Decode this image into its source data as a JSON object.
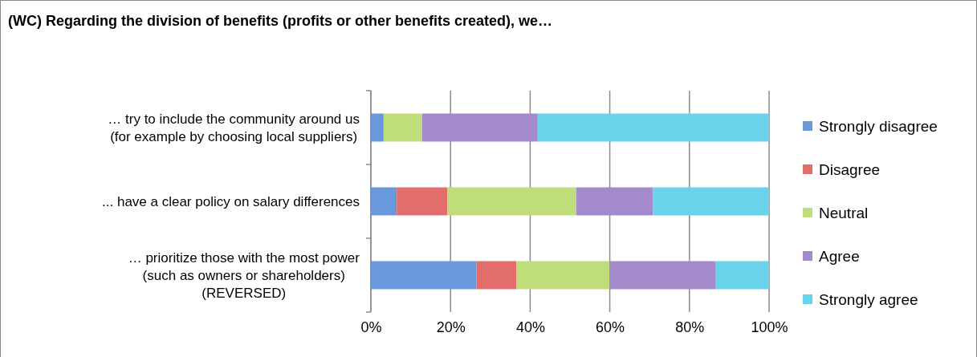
{
  "chart_data": {
    "type": "bar",
    "orientation": "horizontal",
    "stacked": true,
    "title": "(WC) Regarding the division of benefits (profits or other benefits created), we…",
    "categories": [
      "… try to include the community around us\n(for example by choosing local suppliers)",
      "... have a clear policy on salary differences",
      "… prioritize those with the most power\n(such as owners or shareholders)\n(REVERSED)"
    ],
    "series": [
      {
        "name": "Strongly disagree",
        "color": "#6a98dc",
        "values": [
          3.2,
          6.5,
          26.5
        ]
      },
      {
        "name": "Disagree",
        "color": "#e26d6b",
        "values": [
          0,
          12.7,
          10.0
        ]
      },
      {
        "name": "Neutral",
        "color": "#c0dd7c",
        "values": [
          9.7,
          32.4,
          23.4
        ]
      },
      {
        "name": "Agree",
        "color": "#a48acb",
        "values": [
          29.0,
          19.2,
          26.6
        ]
      },
      {
        "name": "Strongly agree",
        "color": "#6ad3ec",
        "values": [
          58.1,
          29.2,
          13.5
        ]
      }
    ],
    "xlim": [
      0,
      100
    ],
    "xticks": [
      {
        "value": 0,
        "label": "0%"
      },
      {
        "value": 20,
        "label": "20%"
      },
      {
        "value": 40,
        "label": "40%"
      },
      {
        "value": 60,
        "label": "60%"
      },
      {
        "value": 80,
        "label": "80%"
      },
      {
        "value": 100,
        "label": "100%"
      }
    ],
    "grid": "x",
    "legend": "right"
  }
}
